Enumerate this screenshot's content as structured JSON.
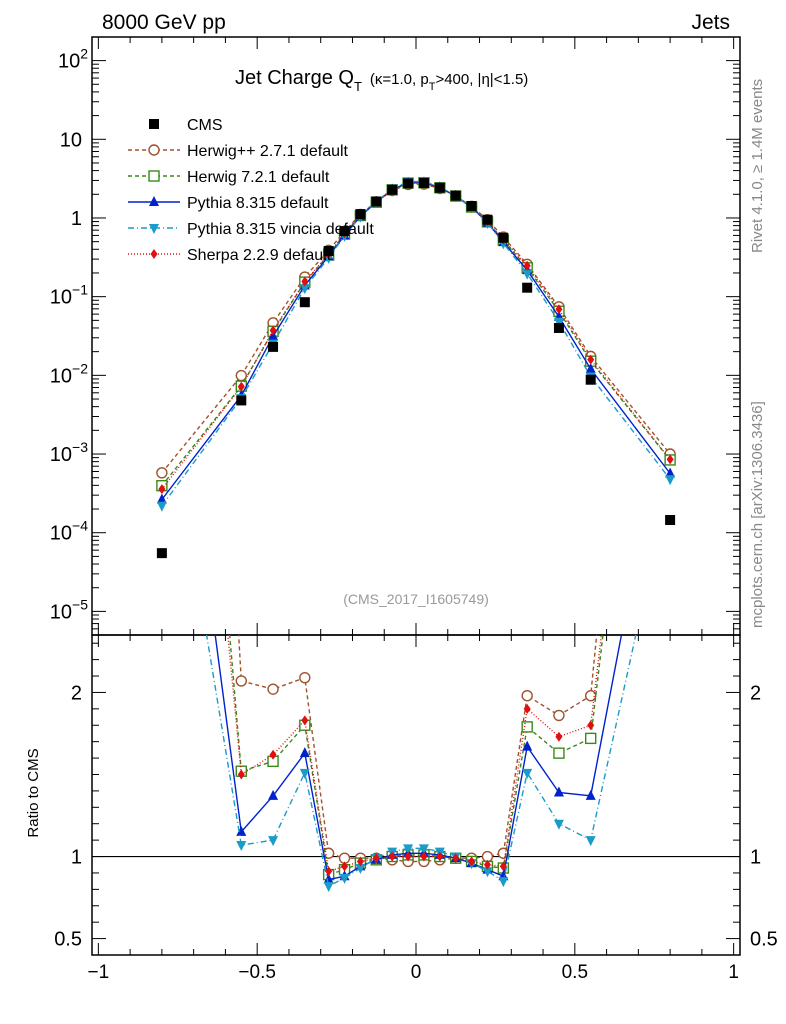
{
  "header": {
    "left": "8000 GeV pp",
    "right": "Jets"
  },
  "side_labels": {
    "top": "Rivet 4.1.0, ≥ 1.4M events",
    "bottom": "mcplots.cern.ch [arXiv:1306.3436]"
  },
  "chart_data": {
    "type": "line",
    "title": "Jet Charge Q",
    "title_sub": "T",
    "title_extra": "(κ=1.0, p",
    "title_extra_sub": "T",
    "title_extra_tail": ">400, |η|<1.5)",
    "analysis_tag": "(CMS_2017_I1605749)",
    "xlim": [
      -1.02,
      1.02
    ],
    "ylim_log10": [
      -5.3,
      2.3
    ],
    "ratio_ylim": [
      0.4,
      2.35
    ],
    "ylabel_ratio": "Ratio to CMS",
    "x_ticks": [
      {
        "v": -1,
        "label": "−1"
      },
      {
        "v": -0.5,
        "label": "−0.5"
      },
      {
        "v": 0,
        "label": "0"
      },
      {
        "v": 0.5,
        "label": "0.5"
      },
      {
        "v": 1,
        "label": "1"
      }
    ],
    "y_ticks": [
      {
        "e": 2,
        "label": "10",
        "sup": "2"
      },
      {
        "e": 1,
        "label": "10",
        "sup": ""
      },
      {
        "e": 0,
        "label": "1",
        "sup": ""
      },
      {
        "e": -1,
        "label": "10",
        "sup": "−1"
      },
      {
        "e": -2,
        "label": "10",
        "sup": "−2"
      },
      {
        "e": -3,
        "label": "10",
        "sup": "−3"
      },
      {
        "e": -4,
        "label": "10",
        "sup": "−4"
      },
      {
        "e": -5,
        "label": "10",
        "sup": "−5"
      }
    ],
    "ratio_ticks": [
      {
        "v": 0.5,
        "label": "0.5"
      },
      {
        "v": 1,
        "label": "1"
      },
      {
        "v": 2,
        "label": "2"
      }
    ],
    "x": [
      -0.8,
      -0.55,
      -0.45,
      -0.35,
      -0.275,
      -0.225,
      -0.175,
      -0.125,
      -0.075,
      -0.025,
      0.025,
      0.075,
      0.125,
      0.175,
      0.225,
      0.275,
      0.35,
      0.45,
      0.55,
      0.8
    ],
    "cms": [
      5.5e-05,
      0.0048,
      0.023,
      0.085,
      0.38,
      0.68,
      1.12,
      1.62,
      2.28,
      2.75,
      2.78,
      2.42,
      1.92,
      1.42,
      0.95,
      0.56,
      0.13,
      0.04,
      0.0088,
      0.000145
    ],
    "series": [
      {
        "name": "Herwig++ 2.7.1 default",
        "color": "#a0522d",
        "marker": "circle-open",
        "dash": "4,3",
        "ratio": [
          10.5,
          2.07,
          2.02,
          2.09,
          1.02,
          0.99,
          0.99,
          0.99,
          0.98,
          0.97,
          0.97,
          0.98,
          0.99,
          0.99,
          1.0,
          1.02,
          1.98,
          1.86,
          1.98,
          6.9
        ]
      },
      {
        "name": "Herwig 7.2.1 default",
        "color": "#3a8a1a",
        "marker": "square-open",
        "dash": "4,3",
        "ratio": [
          7.2,
          1.52,
          1.58,
          1.8,
          0.89,
          0.92,
          0.96,
          0.98,
          1.0,
          1.01,
          1.01,
          1.0,
          0.99,
          0.97,
          0.94,
          0.93,
          1.79,
          1.63,
          1.72,
          5.8
        ]
      },
      {
        "name": "Pythia 8.315 default",
        "color": "#0022cc",
        "marker": "triangle-up",
        "dash": "",
        "ratio": [
          4.8,
          1.15,
          1.37,
          1.63,
          0.86,
          0.88,
          0.94,
          0.98,
          1.01,
          1.02,
          1.02,
          1.01,
          0.99,
          0.96,
          0.92,
          0.88,
          1.67,
          1.39,
          1.37,
          3.9
        ]
      },
      {
        "name": "Pythia 8.315 vincia default",
        "color": "#1a9bc8",
        "marker": "triangle-down",
        "dash": "6,3,1,3",
        "ratio": [
          4.0,
          1.07,
          1.1,
          1.51,
          0.82,
          0.87,
          0.93,
          0.99,
          1.03,
          1.05,
          1.05,
          1.03,
          1.0,
          0.96,
          0.91,
          0.85,
          1.51,
          1.2,
          1.1,
          3.3
        ]
      },
      {
        "name": "Sherpa 2.2.9 default",
        "color": "#e01010",
        "marker": "diamond",
        "dash": "1,2",
        "ratio": [
          6.5,
          1.5,
          1.62,
          1.83,
          0.91,
          0.94,
          0.97,
          0.99,
          1.0,
          1.0,
          1.0,
          1.0,
          0.99,
          0.97,
          0.95,
          0.94,
          1.9,
          1.73,
          1.8,
          5.9
        ]
      }
    ]
  }
}
